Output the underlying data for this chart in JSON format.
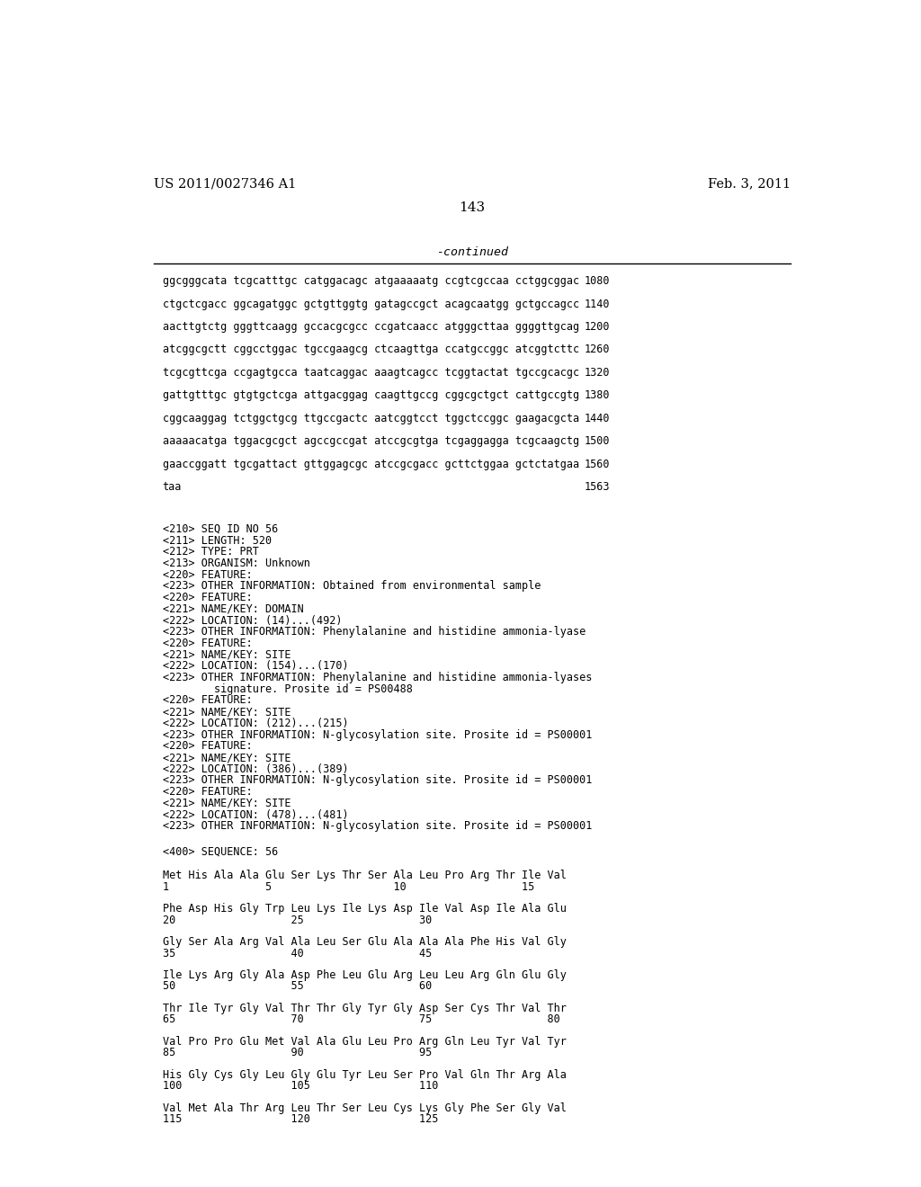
{
  "patent_number": "US 2011/0027346 A1",
  "date": "Feb. 3, 2011",
  "page_number": "143",
  "continued_label": "-continued",
  "background_color": "#ffffff",
  "text_color": "#000000",
  "sequence_lines": [
    [
      "ggcgggcata tcgcatttgc catggacagc atgaaaaatg ccgtcgccaa cctggcggac",
      "1080"
    ],
    [
      "ctgctcgacc ggcagatggc gctgttggtg gatagccgct acagcaatgg gctgccagcc",
      "1140"
    ],
    [
      "aacttgtctg gggttcaagg gccacgcgcc ccgatcaacc atgggcttaa ggggttgcag",
      "1200"
    ],
    [
      "atcggcgctt cggcctggac tgccgaagcg ctcaagttga ccatgccggc atcggtcttc",
      "1260"
    ],
    [
      "tcgcgttcga ccgagtgcca taatcaggac aaagtcagcc tcggtactat tgccgcacgc",
      "1320"
    ],
    [
      "gattgtttgc gtgtgctcga attgacggag caagttgccg cggcgctgct cattgccgtg",
      "1380"
    ],
    [
      "cggcaaggag tctggctgcg ttgccgactc aatcggtcct tggctccggc gaagacgcta",
      "1440"
    ],
    [
      "aaaaacatga tggacgcgct agccgccgat atccgcgtga tcgaggagga tcgcaagctg",
      "1500"
    ],
    [
      "gaaccggatt tgcgattact gttggagcgc atccgcgacc gcttctggaa gctctatgaa",
      "1560"
    ],
    [
      "taa",
      "1563"
    ]
  ],
  "metadata_lines": [
    "<210> SEQ ID NO 56",
    "<211> LENGTH: 520",
    "<212> TYPE: PRT",
    "<213> ORGANISM: Unknown",
    "<220> FEATURE:",
    "<223> OTHER INFORMATION: Obtained from environmental sample",
    "<220> FEATURE:",
    "<221> NAME/KEY: DOMAIN",
    "<222> LOCATION: (14)...(492)",
    "<223> OTHER INFORMATION: Phenylalanine and histidine ammonia-lyase",
    "<220> FEATURE:",
    "<221> NAME/KEY: SITE",
    "<222> LOCATION: (154)...(170)",
    "<223> OTHER INFORMATION: Phenylalanine and histidine ammonia-lyases",
    "        signature. Prosite id = PS00488",
    "<220> FEATURE:",
    "<221> NAME/KEY: SITE",
    "<222> LOCATION: (212)...(215)",
    "<223> OTHER INFORMATION: N-glycosylation site. Prosite id = PS00001",
    "<220> FEATURE:",
    "<221> NAME/KEY: SITE",
    "<222> LOCATION: (386)...(389)",
    "<223> OTHER INFORMATION: N-glycosylation site. Prosite id = PS00001",
    "<220> FEATURE:",
    "<221> NAME/KEY: SITE",
    "<222> LOCATION: (478)...(481)",
    "<223> OTHER INFORMATION: N-glycosylation site. Prosite id = PS00001"
  ],
  "sequence_header": "<400> SEQUENCE: 56",
  "amino_acid_lines": [
    {
      "seq": "Met His Ala Ala Glu Ser Lys Thr Ser Ala Leu Pro Arg Thr Ile Val",
      "nums": "1               5                   10                  15"
    },
    {
      "seq": "Phe Asp His Gly Trp Leu Lys Ile Lys Asp Ile Val Asp Ile Ala Glu",
      "nums": "20                  25                  30"
    },
    {
      "seq": "Gly Ser Ala Arg Val Ala Leu Ser Glu Ala Ala Ala Phe His Val Gly",
      "nums": "35                  40                  45"
    },
    {
      "seq": "Ile Lys Arg Gly Ala Asp Phe Leu Glu Arg Leu Leu Arg Gln Glu Gly",
      "nums": "50                  55                  60"
    },
    {
      "seq": "Thr Ile Tyr Gly Val Thr Thr Gly Tyr Gly Asp Ser Cys Thr Val Thr",
      "nums": "65                  70                  75                  80"
    },
    {
      "seq": "Val Pro Pro Glu Met Val Ala Glu Leu Pro Arg Gln Leu Tyr Val Tyr",
      "nums": "85                  90                  95"
    },
    {
      "seq": "His Gly Cys Gly Leu Gly Glu Tyr Leu Ser Pro Val Gln Thr Arg Ala",
      "nums": "100                 105                 110"
    },
    {
      "seq": "Val Met Ala Thr Arg Leu Thr Ser Leu Cys Lys Gly Phe Ser Gly Val",
      "nums": "115                 120                 125"
    }
  ]
}
